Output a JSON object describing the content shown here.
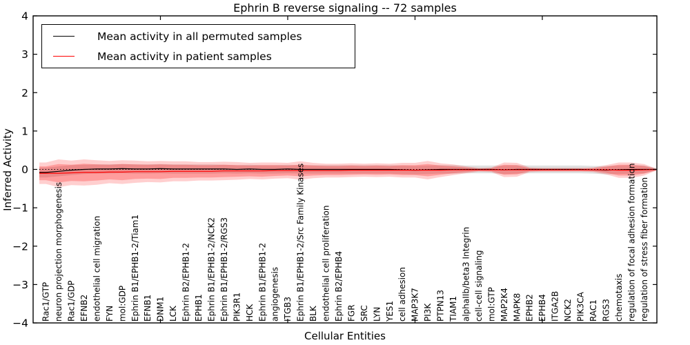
{
  "title": "Ephrin B reverse signaling -- 72 samples",
  "legend": {
    "items": [
      {
        "label": "Mean activity in all permuted samples",
        "color": "#000000"
      },
      {
        "label": "Mean activity in patient samples",
        "color": "#ff0000"
      }
    ]
  },
  "axes": {
    "ylabel": "Inferred Activity",
    "xlabel": "Cellular Entities",
    "yticks": [
      4,
      3,
      2,
      1,
      0,
      -1,
      -2,
      -3,
      -4
    ],
    "ylim": [
      -4,
      4
    ]
  },
  "chart_data": {
    "type": "line",
    "title": "Ephrin B reverse signaling -- 72 samples",
    "xlabel": "Cellular Entities",
    "ylabel": "Inferred Activity",
    "ylim": [
      -4,
      4
    ],
    "yticks": [
      4,
      3,
      2,
      1,
      0,
      -1,
      -2,
      -3,
      -4
    ],
    "xticks_major": [
      10,
      20,
      30,
      40
    ],
    "zero_reference_line": 0,
    "legend_position": "upper left",
    "grid": false,
    "colors": {
      "patient_line": "#ff0000",
      "permuted_line": "#000000",
      "patient_band": "rgba(255,0,0,0.19)",
      "patient_band_inner": "rgba(255,0,0,0.24)",
      "permuted_band": "rgba(0,0,0,0.12)"
    },
    "categories": [
      "Rac1/GTP",
      "neuron projection morphogenesis",
      "Rac1/GDP",
      "EFNB2",
      "endothelial cell migration",
      "FYN",
      "mol:GDP",
      "Ephrin B1/EPHB1-2/Tiam1",
      "EFNB1",
      "DNM1",
      "LCK",
      "Ephrin B2/EPHB1-2",
      "EPHB1",
      "Ephrin B1/EPHB1-2/NCK2",
      "Ephrin B1/EPHB1-2/RGS3",
      "PIK3R1",
      "HCK",
      "Ephrin B1/EPHB1-2",
      "angiogenesis",
      "ITGB3",
      "Ephrin B1/EPHB1-2/Src Family Kinases",
      "BLK",
      "endothelial cell proliferation",
      "Ephrin B2/EPHB4",
      "FGR",
      "SRC",
      "LYN",
      "YES1",
      "cell adhesion",
      "MAP3K7",
      "PI3K",
      "PTPN13",
      "TIAM1",
      "alphaIIb/beta3 Integrin",
      "cell-cell signaling",
      "mol:GTP",
      "MAP2K4",
      "MAPK8",
      "EPHB2",
      "EPHB4",
      "ITGA2B",
      "NCK2",
      "PIK3CA",
      "RAC1",
      "RGS3",
      "chemotaxis",
      "regulation of focal adhesion formation",
      "regulation of stress fiber formation"
    ],
    "series": [
      {
        "name": "Mean activity in patient samples",
        "values": [
          -0.1,
          -0.1,
          -0.09,
          -0.08,
          -0.08,
          -0.07,
          -0.07,
          -0.06,
          -0.06,
          -0.06,
          -0.05,
          -0.05,
          -0.05,
          -0.05,
          -0.04,
          -0.04,
          -0.04,
          -0.04,
          -0.03,
          -0.03,
          -0.03,
          -0.03,
          -0.03,
          -0.03,
          -0.02,
          -0.02,
          -0.02,
          -0.02,
          -0.02,
          -0.02,
          -0.02,
          -0.02,
          -0.01,
          -0.01,
          -0.01,
          -0.01,
          -0.01,
          -0.01,
          -0.01,
          -0.01,
          -0.01,
          -0.01,
          -0.01,
          -0.01,
          -0.01,
          -0.02,
          -0.02,
          -0.01
        ]
      },
      {
        "name": "Mean activity in all permuted samples",
        "values": [
          -0.08,
          -0.05,
          -0.02,
          0.0,
          0.01,
          0.01,
          0.02,
          0.01,
          0.01,
          0.02,
          0.01,
          0.01,
          0.01,
          0.01,
          0.01,
          0.0,
          0.01,
          0.0,
          0.0,
          0.01,
          0.0,
          0.0,
          0.0,
          0.0,
          0.0,
          0.0,
          0.0,
          0.0,
          -0.01,
          -0.02,
          -0.01,
          0.0,
          0.0,
          0.0,
          0.0,
          0.0,
          -0.01,
          0.0,
          0.0,
          0.0,
          0.0,
          0.0,
          0.0,
          -0.01,
          -0.02,
          -0.01,
          0.0,
          0.0
        ]
      }
    ],
    "bands": {
      "patient_inner_halfwidth": [
        0.18,
        0.24,
        0.21,
        0.23,
        0.21,
        0.19,
        0.21,
        0.19,
        0.18,
        0.19,
        0.17,
        0.17,
        0.16,
        0.16,
        0.16,
        0.15,
        0.14,
        0.15,
        0.14,
        0.13,
        0.15,
        0.13,
        0.12,
        0.12,
        0.12,
        0.11,
        0.12,
        0.11,
        0.13,
        0.13,
        0.16,
        0.12,
        0.09,
        0.06,
        0.03,
        0.04,
        0.13,
        0.12,
        0.04,
        0.03,
        0.03,
        0.03,
        0.03,
        0.04,
        0.08,
        0.14,
        0.14,
        0.1
      ],
      "patient_outer_halfwidth": [
        0.28,
        0.36,
        0.32,
        0.34,
        0.32,
        0.29,
        0.31,
        0.29,
        0.27,
        0.28,
        0.26,
        0.26,
        0.24,
        0.24,
        0.24,
        0.23,
        0.21,
        0.22,
        0.21,
        0.2,
        0.24,
        0.2,
        0.18,
        0.18,
        0.18,
        0.17,
        0.18,
        0.17,
        0.19,
        0.19,
        0.24,
        0.18,
        0.14,
        0.09,
        0.05,
        0.06,
        0.19,
        0.18,
        0.06,
        0.05,
        0.05,
        0.05,
        0.05,
        0.06,
        0.12,
        0.2,
        0.2,
        0.15
      ],
      "permuted_halfwidth": [
        0.13,
        0.13,
        0.13,
        0.12,
        0.12,
        0.12,
        0.12,
        0.12,
        0.12,
        0.12,
        0.12,
        0.12,
        0.12,
        0.12,
        0.11,
        0.11,
        0.11,
        0.11,
        0.11,
        0.11,
        0.11,
        0.11,
        0.11,
        0.11,
        0.11,
        0.11,
        0.11,
        0.11,
        0.11,
        0.11,
        0.11,
        0.11,
        0.11,
        0.1,
        0.1,
        0.1,
        0.11,
        0.11,
        0.1,
        0.1,
        0.1,
        0.1,
        0.1,
        0.1,
        0.11,
        0.11,
        0.11,
        0.1
      ]
    }
  }
}
